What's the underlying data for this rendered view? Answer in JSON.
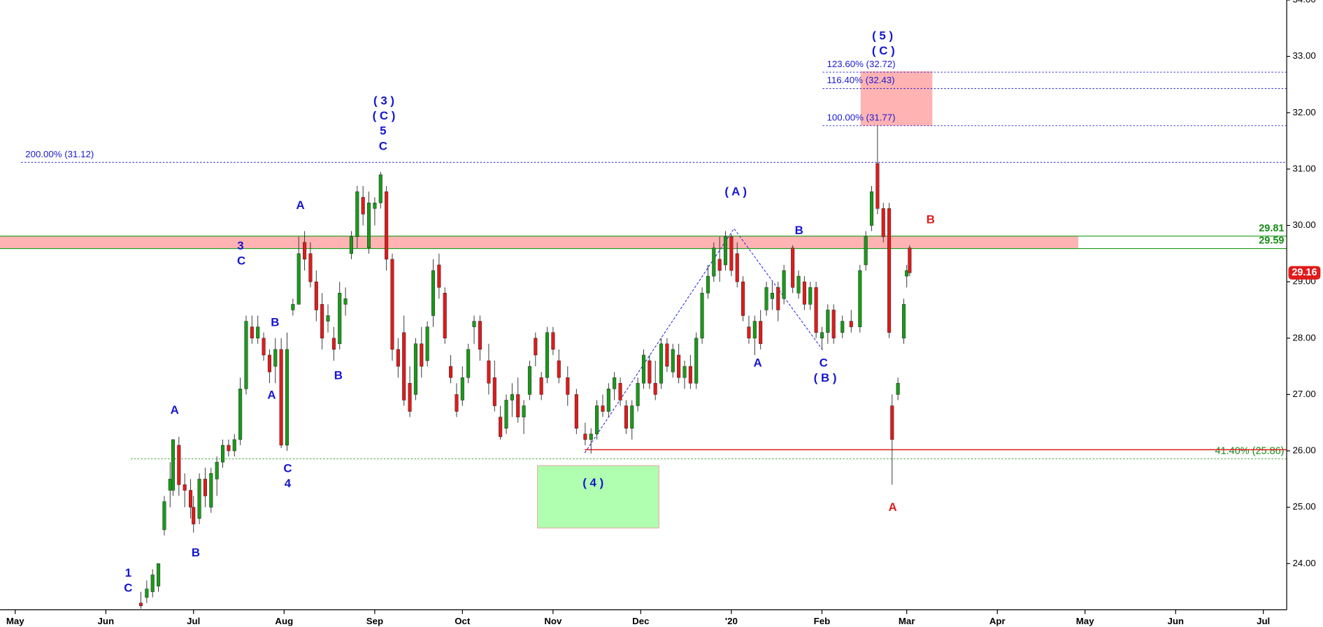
{
  "chart_data": {
    "type": "candlestick",
    "up_color": "#1a9a1a",
    "down_color": "#e01b1b",
    "x": [
      43,
      45,
      47,
      49,
      51,
      53,
      54,
      56,
      58,
      60,
      61,
      63,
      65,
      67,
      69,
      71,
      73,
      75,
      77,
      79,
      81,
      83,
      85,
      87,
      89,
      91,
      93,
      95,
      97,
      99,
      101,
      103,
      105,
      107,
      109,
      111,
      113,
      115,
      117,
      119,
      121,
      123,
      125,
      127,
      129,
      131,
      133,
      135,
      137,
      139,
      141,
      143,
      145,
      147,
      149,
      151,
      153,
      155,
      157,
      159,
      162,
      164,
      166,
      168,
      170,
      172,
      174,
      176,
      178,
      180,
      182,
      184,
      186,
      189,
      192,
      195,
      197,
      199,
      201,
      203,
      205,
      207,
      209,
      211,
      213,
      215,
      217,
      219,
      221,
      223,
      225,
      227,
      229,
      231,
      233,
      235,
      237,
      239,
      241,
      243,
      245,
      247,
      249,
      251,
      253,
      255,
      257,
      259,
      261,
      263,
      266,
      268,
      270,
      272,
      274,
      276,
      278,
      280,
      283,
      286,
      289,
      291,
      293,
      295,
      297,
      299,
      300,
      302,
      304,
      305,
      306
    ],
    "open": [
      23.3,
      23.4,
      23.5,
      23.6,
      24.6,
      25.3,
      25.3,
      26.1,
      25.4,
      25.3,
      25.0,
      24.8,
      25.5,
      25.0,
      25.5,
      25.8,
      26.1,
      26.0,
      26.2,
      27.1,
      28.2,
      28.0,
      28.0,
      27.7,
      27.5,
      27.8,
      26.1,
      28.5,
      28.6,
      29.7,
      29.5,
      29.0,
      28.6,
      28.3,
      28.0,
      27.9,
      28.6,
      29.5,
      29.8,
      30.5,
      29.6,
      30.3,
      30.4,
      30.6,
      29.4,
      27.8,
      28.1,
      27.2,
      27.0,
      27.9,
      27.6,
      28.4,
      29.3,
      28.8,
      27.5,
      27.0,
      26.9,
      27.3,
      28.2,
      28.3,
      27.6,
      27.3,
      26.6,
      26.4,
      26.9,
      27.0,
      26.6,
      27.0,
      28.0,
      27.3,
      27.3,
      28.1,
      27.6,
      27.3,
      27.0,
      26.3,
      26.2,
      26.3,
      26.8,
      26.7,
      27.1,
      27.2,
      26.8,
      26.4,
      26.8,
      27.2,
      27.6,
      27.2,
      27.2,
      27.9,
      27.4,
      27.7,
      27.3,
      27.5,
      27.2,
      28.0,
      28.8,
      29.1,
      29.4,
      29.3,
      29.8,
      29.5,
      29.0,
      28.2,
      28.0,
      28.3,
      28.5,
      28.7,
      28.9,
      28.7,
      29.6,
      28.8,
      29.0,
      28.6,
      28.9,
      28.0,
      28.1,
      28.5,
      28.1,
      28.3,
      28.2,
      29.3,
      30.0,
      31.1,
      30.3,
      30.3,
      26.8,
      27.0,
      28.0,
      29.1,
      29.6
    ],
    "high": [
      23.5,
      23.7,
      23.9,
      24.0,
      25.2,
      25.8,
      26.2,
      26.25,
      25.6,
      25.5,
      25.2,
      25.6,
      25.7,
      25.7,
      25.9,
      26.2,
      26.2,
      26.3,
      27.3,
      28.4,
      28.4,
      28.4,
      28.1,
      27.8,
      28.0,
      28.0,
      28.1,
      28.7,
      29.8,
      29.9,
      29.7,
      29.2,
      28.8,
      28.6,
      28.2,
      29.0,
      28.9,
      29.9,
      30.7,
      30.7,
      30.6,
      30.5,
      30.95,
      30.7,
      29.5,
      28.0,
      28.4,
      27.5,
      28.0,
      28.2,
      28.3,
      29.4,
      29.5,
      28.9,
      27.7,
      27.2,
      27.5,
      27.9,
      28.4,
      28.4,
      27.9,
      27.6,
      26.8,
      27.0,
      27.2,
      27.3,
      26.9,
      27.6,
      28.1,
      27.4,
      28.2,
      28.2,
      27.8,
      27.5,
      27.1,
      26.5,
      26.4,
      26.9,
      27.0,
      27.2,
      27.4,
      27.3,
      26.9,
      26.9,
      27.3,
      27.8,
      27.7,
      27.6,
      28.0,
      28.0,
      27.9,
      27.9,
      27.6,
      27.7,
      28.1,
      28.9,
      29.3,
      29.7,
      29.8,
      29.9,
      29.85,
      29.7,
      29.1,
      28.4,
      28.4,
      28.5,
      29.0,
      29.0,
      29.0,
      29.3,
      29.65,
      29.2,
      29.1,
      29.0,
      29.0,
      28.2,
      28.6,
      28.6,
      28.4,
      28.5,
      29.3,
      29.9,
      30.7,
      31.77,
      30.4,
      30.4,
      27.0,
      27.3,
      28.7,
      29.3,
      29.65
    ],
    "low": [
      23.2,
      23.3,
      23.4,
      23.5,
      24.5,
      25.0,
      25.2,
      25.2,
      25.0,
      24.8,
      24.55,
      24.7,
      25.0,
      24.9,
      25.2,
      25.7,
      25.9,
      25.9,
      26.1,
      27.0,
      27.9,
      27.9,
      27.6,
      27.2,
      27.2,
      26.05,
      26.0,
      28.4,
      28.6,
      29.2,
      28.9,
      28.3,
      27.8,
      28.1,
      27.6,
      27.8,
      28.4,
      29.4,
      29.6,
      30.0,
      29.5,
      30.0,
      30.3,
      29.2,
      27.6,
      27.3,
      26.8,
      26.6,
      26.9,
      27.3,
      27.5,
      28.2,
      28.7,
      27.9,
      27.2,
      26.6,
      26.8,
      27.2,
      27.9,
      27.6,
      27.0,
      26.7,
      26.2,
      26.3,
      26.6,
      26.5,
      26.3,
      26.9,
      27.5,
      26.9,
      27.2,
      27.7,
      27.2,
      26.8,
      26.3,
      26.1,
      25.95,
      26.2,
      26.6,
      26.6,
      26.9,
      26.8,
      26.3,
      26.2,
      26.7,
      27.1,
      27.1,
      26.9,
      27.1,
      27.4,
      27.3,
      27.2,
      27.1,
      27.1,
      27.1,
      27.9,
      28.7,
      29.0,
      29.0,
      29.2,
      29.1,
      28.9,
      28.3,
      27.9,
      27.7,
      27.8,
      28.4,
      28.5,
      28.3,
      28.6,
      28.8,
      28.7,
      28.5,
      28.5,
      28.0,
      27.8,
      27.9,
      27.9,
      28.0,
      28.1,
      28.1,
      29.2,
      29.9,
      30.2,
      29.7,
      28.0,
      25.4,
      26.9,
      27.9,
      28.9,
      29.1
    ],
    "close": [
      23.25,
      23.55,
      23.8,
      24.0,
      25.1,
      25.5,
      26.2,
      25.4,
      25.3,
      25.0,
      24.7,
      25.5,
      25.2,
      25.6,
      25.8,
      26.1,
      26.0,
      26.2,
      27.1,
      28.3,
      28.0,
      28.2,
      27.7,
      27.4,
      27.8,
      26.1,
      27.8,
      28.6,
      29.5,
      29.4,
      29.0,
      28.5,
      28.0,
      28.4,
      27.8,
      28.8,
      28.7,
      29.8,
      30.6,
      30.2,
      30.4,
      30.4,
      30.9,
      29.4,
      27.8,
      27.5,
      26.9,
      26.7,
      27.9,
      27.5,
      28.2,
      29.2,
      28.9,
      28.0,
      27.3,
      26.7,
      27.3,
      27.8,
      28.3,
      27.8,
      27.2,
      26.8,
      26.25,
      26.9,
      27.0,
      26.6,
      26.8,
      27.5,
      27.7,
      27.0,
      28.1,
      27.8,
      27.3,
      27.0,
      26.4,
      26.2,
      26.3,
      26.8,
      26.7,
      27.1,
      27.3,
      26.9,
      26.4,
      26.8,
      27.2,
      27.7,
      27.2,
      27.0,
      27.9,
      27.5,
      27.8,
      27.3,
      27.5,
      27.2,
      28.0,
      28.8,
      29.1,
      29.6,
      29.2,
      29.8,
      29.2,
      29.0,
      28.4,
      28.0,
      28.3,
      27.9,
      28.9,
      28.8,
      28.5,
      29.2,
      28.9,
      29.1,
      28.6,
      28.9,
      28.1,
      28.1,
      28.5,
      28.0,
      28.3,
      28.2,
      29.2,
      29.8,
      30.6,
      30.3,
      29.8,
      28.1,
      26.2,
      27.2,
      28.6,
      29.2,
      29.16
    ],
    "xlim": [
      -5.2,
      435
    ],
    "ylim": [
      23.18,
      34
    ],
    "xticks": [
      {
        "value": 0,
        "label": "May"
      },
      {
        "value": 31,
        "label": "Jun"
      },
      {
        "value": 61,
        "label": "Jul"
      },
      {
        "value": 92,
        "label": "Aug"
      },
      {
        "value": 123,
        "label": "Sep"
      },
      {
        "value": 153,
        "label": "Oct"
      },
      {
        "value": 184,
        "label": "Nov"
      },
      {
        "value": 214,
        "label": "Dec"
      },
      {
        "value": 245,
        "label": "'20"
      },
      {
        "value": 276,
        "label": "Feb"
      },
      {
        "value": 305,
        "label": "Mar"
      },
      {
        "value": 336,
        "label": "Apr"
      },
      {
        "value": 366,
        "label": "May"
      },
      {
        "value": 397,
        "label": "Jun"
      },
      {
        "value": 427,
        "label": "Jul"
      }
    ],
    "yticks": [
      {
        "value": 24,
        "label": "24.00"
      },
      {
        "value": 25,
        "label": "25.00"
      },
      {
        "value": 26,
        "label": "26.00"
      },
      {
        "value": 27,
        "label": "27.00"
      },
      {
        "value": 28,
        "label": "28.00"
      },
      {
        "value": 29,
        "label": "29.00"
      },
      {
        "value": 30,
        "label": "30.00"
      },
      {
        "value": 31,
        "label": "31.00"
      },
      {
        "value": 32,
        "label": "32.00"
      },
      {
        "value": 33,
        "label": "33.00"
      },
      {
        "value": 34,
        "label": "34.00"
      }
    ],
    "levels": [
      {
        "value": 31.12,
        "label": "200.00% (31.12)"
      },
      {
        "value": 31.77,
        "label": "100.00% (31.77)"
      },
      {
        "value": 32.43,
        "label": "116.40% (32.43)"
      },
      {
        "value": 32.72,
        "label": "123.60% (32.72)"
      }
    ],
    "lines": [
      29.81,
      29.59
    ],
    "support_level": {
      "value": 25.86,
      "label": "41.40% (25.86)"
    },
    "red_line": 26.02,
    "last_price": 29.16,
    "annotations": [
      "1",
      "C",
      "A",
      "B",
      "3",
      "C",
      "B",
      "A",
      "C",
      "4",
      "A",
      "B",
      "( 3 )",
      "( C )",
      "5",
      "C",
      "( 4 )",
      "( A )",
      "B",
      "A",
      "C",
      "( B )",
      "( 5 )",
      "( C )",
      "B",
      "A"
    ]
  }
}
